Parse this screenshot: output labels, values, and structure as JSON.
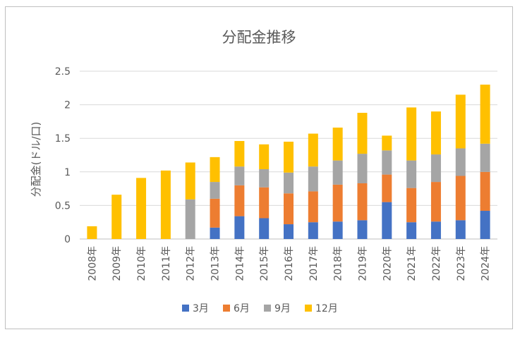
{
  "chart_data": {
    "type": "bar",
    "stacked": true,
    "title": "分配金推移",
    "xlabel": "",
    "ylabel": "分配金(ドル/口)",
    "ylim": [
      0,
      2.5
    ],
    "yticks": [
      0,
      0.5,
      1,
      1.5,
      2,
      2.5
    ],
    "ytick_labels": [
      "0",
      "0.5",
      "1",
      "1.5",
      "2",
      "2.5"
    ],
    "grid": true,
    "legend": "bottom",
    "categories": [
      "2008年",
      "2009年",
      "2010年",
      "2011年",
      "2012年",
      "2013年",
      "2014年",
      "2015年",
      "2016年",
      "2017年",
      "2018年",
      "2019年",
      "2020年",
      "2021年",
      "2022年",
      "2023年",
      "2024年"
    ],
    "series": [
      {
        "name": "3月",
        "color": "#4472c4",
        "values": [
          0,
          0,
          0,
          0,
          0,
          0.17,
          0.34,
          0.31,
          0.22,
          0.25,
          0.26,
          0.28,
          0.55,
          0.25,
          0.26,
          0.28,
          0.42
        ]
      },
      {
        "name": "6月",
        "color": "#ed7d31",
        "values": [
          0,
          0,
          0,
          0,
          0,
          0.43,
          0.46,
          0.46,
          0.46,
          0.46,
          0.55,
          0.55,
          0.41,
          0.51,
          0.59,
          0.66,
          0.58
        ]
      },
      {
        "name": "9月",
        "color": "#a5a5a5",
        "values": [
          0,
          0,
          0,
          0,
          0.59,
          0.25,
          0.28,
          0.27,
          0.31,
          0.37,
          0.36,
          0.44,
          0.36,
          0.41,
          0.41,
          0.41,
          0.42
        ]
      },
      {
        "name": "12月",
        "color": "#ffc000",
        "values": [
          0.19,
          0.66,
          0.91,
          1.02,
          0.55,
          0.37,
          0.38,
          0.37,
          0.46,
          0.49,
          0.49,
          0.61,
          0.22,
          0.79,
          0.64,
          0.8,
          0.88
        ]
      }
    ]
  }
}
